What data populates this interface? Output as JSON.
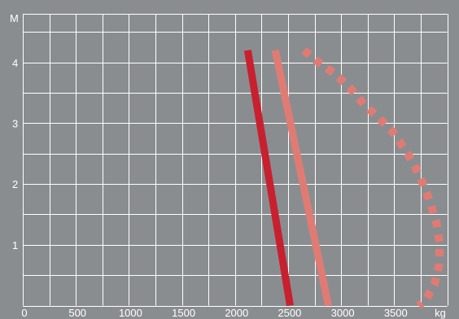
{
  "chart_data": {
    "type": "line",
    "title": "",
    "xlabel": "kg",
    "ylabel": "M",
    "xlim": [
      0,
      4000
    ],
    "ylim": [
      0,
      4.8
    ],
    "x_ticks": [
      0,
      500,
      1000,
      1500,
      2000,
      2500,
      3000,
      3500
    ],
    "y_ticks": [
      1,
      2,
      3,
      4
    ],
    "grid": true,
    "legend": "none",
    "series": [
      {
        "color": "#c8202f",
        "style": "solid",
        "points": [
          [
            2120,
            4.2
          ],
          [
            2520,
            0.0
          ]
        ]
      },
      {
        "color": "#e07b74",
        "style": "solid",
        "points": [
          [
            2380,
            4.2
          ],
          [
            2880,
            0.0
          ]
        ]
      },
      {
        "color": "#e07b74",
        "style": "dotted",
        "points": [
          [
            2650,
            4.2
          ],
          [
            2790,
            4.0
          ],
          [
            2950,
            3.8
          ],
          [
            3100,
            3.55
          ],
          [
            3220,
            3.3
          ],
          [
            3360,
            3.08
          ],
          [
            3490,
            2.85
          ],
          [
            3590,
            2.6
          ],
          [
            3680,
            2.35
          ],
          [
            3760,
            2.05
          ],
          [
            3840,
            1.7
          ],
          [
            3900,
            1.35
          ],
          [
            3930,
            1.0
          ],
          [
            3920,
            0.65
          ],
          [
            3880,
            0.35
          ],
          [
            3800,
            0.1
          ],
          [
            3730,
            0.0
          ]
        ]
      }
    ]
  }
}
